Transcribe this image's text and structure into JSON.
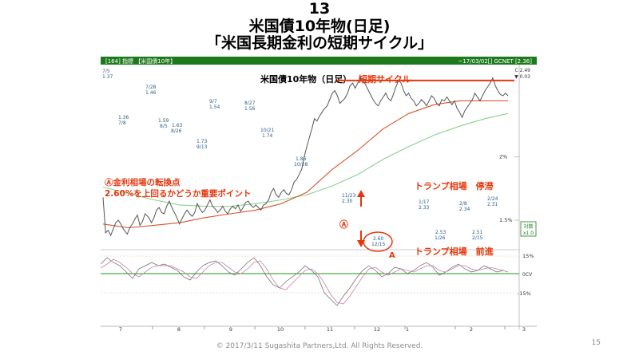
{
  "slide": {
    "number": "13",
    "title_line1": "米国債10年物(日足)",
    "title_line2": "「米国長期金利の短期サイクル」",
    "footer": "© 2017/3/11 Sugashita Partners,Ltd. All Rights Reserved.",
    "page_number": "15"
  },
  "chart_data": {
    "type": "line",
    "header_left": "[164] 指標 【米国債10年】",
    "header_right": "~17/03/02[] GCNET [2.36]",
    "header_legend": [
      "C 2.49",
      "▼ 0.03"
    ],
    "title": "米国債10年物（日足）",
    "title_highlight": "短期サイクル",
    "x_ticks": [
      "7",
      "8",
      "9",
      "10",
      "11",
      "12",
      "1",
      "2",
      "3"
    ],
    "y_ticks": [
      "1.5%",
      "2%"
    ],
    "y_range": [
      1.28,
      2.7
    ],
    "oscillator_ticks": [
      "15%",
      "0CV",
      "-15%"
    ],
    "series": [
      {
        "name": "price",
        "color": "#555555",
        "points": [
          [
            0,
            1.68
          ],
          [
            2,
            1.4
          ],
          [
            4,
            1.42
          ],
          [
            6,
            1.38
          ],
          [
            8,
            1.43
          ],
          [
            10,
            1.48
          ],
          [
            12,
            1.5
          ],
          [
            14,
            1.47
          ],
          [
            16,
            1.43
          ],
          [
            19,
            1.39
          ],
          [
            21,
            1.44
          ],
          [
            23,
            1.47
          ],
          [
            25,
            1.51
          ],
          [
            27,
            1.54
          ],
          [
            29,
            1.46
          ],
          [
            31,
            1.49
          ],
          [
            33,
            1.55
          ],
          [
            36,
            1.52
          ],
          [
            38,
            1.48
          ],
          [
            40,
            1.52
          ],
          [
            42,
            1.58
          ],
          [
            44,
            1.6
          ],
          [
            46,
            1.56
          ],
          [
            48,
            1.55
          ],
          [
            50,
            1.61
          ],
          [
            52,
            1.65
          ],
          [
            54,
            1.6
          ],
          [
            56,
            1.56
          ],
          [
            58,
            1.52
          ],
          [
            60,
            1.47
          ],
          [
            62,
            1.51
          ],
          [
            64,
            1.55
          ],
          [
            66,
            1.58
          ],
          [
            68,
            1.55
          ],
          [
            70,
            1.53
          ],
          [
            72,
            1.56
          ],
          [
            74,
            1.63
          ],
          [
            76,
            1.59
          ],
          [
            78,
            1.56
          ],
          [
            80,
            1.58
          ],
          [
            82,
            1.62
          ],
          [
            84,
            1.66
          ],
          [
            86,
            1.61
          ],
          [
            88,
            1.59
          ],
          [
            90,
            1.56
          ],
          [
            92,
            1.58
          ],
          [
            94,
            1.61
          ],
          [
            96,
            1.57
          ],
          [
            98,
            1.55
          ],
          [
            100,
            1.59
          ],
          [
            102,
            1.61
          ],
          [
            104,
            1.59
          ],
          [
            106,
            1.62
          ],
          [
            108,
            1.57
          ],
          [
            110,
            1.6
          ],
          [
            112,
            1.64
          ],
          [
            114,
            1.65
          ],
          [
            116,
            1.62
          ],
          [
            118,
            1.6
          ],
          [
            120,
            1.62
          ],
          [
            122,
            1.6
          ],
          [
            124,
            1.58
          ],
          [
            126,
            1.62
          ],
          [
            128,
            1.63
          ],
          [
            130,
            1.66
          ],
          [
            132,
            1.72
          ],
          [
            134,
            1.75
          ],
          [
            136,
            1.7
          ],
          [
            138,
            1.68
          ],
          [
            140,
            1.72
          ],
          [
            142,
            1.74
          ],
          [
            144,
            1.71
          ],
          [
            146,
            1.7
          ],
          [
            148,
            1.74
          ],
          [
            150,
            1.8
          ],
          [
            152,
            1.82
          ],
          [
            154,
            1.86
          ],
          [
            156,
            1.9
          ],
          [
            158,
            2.0
          ],
          [
            160,
            2.08
          ],
          [
            162,
            2.15
          ],
          [
            164,
            2.22
          ],
          [
            166,
            2.3
          ],
          [
            168,
            2.28
          ],
          [
            170,
            2.32
          ],
          [
            172,
            2.35
          ],
          [
            174,
            2.38
          ],
          [
            176,
            2.4
          ],
          [
            178,
            2.45
          ],
          [
            180,
            2.5
          ],
          [
            182,
            2.52
          ],
          [
            184,
            2.48
          ],
          [
            186,
            2.42
          ],
          [
            188,
            2.44
          ],
          [
            190,
            2.46
          ],
          [
            192,
            2.5
          ],
          [
            194,
            2.56
          ],
          [
            196,
            2.58
          ],
          [
            198,
            2.54
          ],
          [
            200,
            2.58
          ],
          [
            202,
            2.62
          ],
          [
            204,
            2.6
          ],
          [
            206,
            2.57
          ],
          [
            208,
            2.53
          ],
          [
            210,
            2.49
          ],
          [
            212,
            2.45
          ],
          [
            214,
            2.42
          ],
          [
            216,
            2.4
          ],
          [
            218,
            2.44
          ],
          [
            220,
            2.47
          ],
          [
            222,
            2.5
          ],
          [
            224,
            2.46
          ],
          [
            226,
            2.44
          ],
          [
            228,
            2.49
          ],
          [
            230,
            2.55
          ],
          [
            232,
            2.6
          ],
          [
            234,
            2.58
          ],
          [
            236,
            2.52
          ],
          [
            238,
            2.48
          ],
          [
            240,
            2.5
          ],
          [
            242,
            2.46
          ],
          [
            244,
            2.44
          ],
          [
            246,
            2.4
          ],
          [
            248,
            2.42
          ],
          [
            250,
            2.45
          ],
          [
            252,
            2.43
          ],
          [
            254,
            2.4
          ],
          [
            256,
            2.44
          ],
          [
            258,
            2.48
          ],
          [
            260,
            2.46
          ],
          [
            262,
            2.42
          ],
          [
            264,
            2.4
          ],
          [
            266,
            2.45
          ],
          [
            268,
            2.44
          ],
          [
            270,
            2.47
          ],
          [
            272,
            2.44
          ],
          [
            274,
            2.41
          ],
          [
            276,
            2.44
          ],
          [
            278,
            2.38
          ],
          [
            280,
            2.35
          ],
          [
            282,
            2.31
          ],
          [
            284,
            2.36
          ],
          [
            286,
            2.39
          ],
          [
            288,
            2.42
          ],
          [
            290,
            2.45
          ],
          [
            292,
            2.5
          ],
          [
            294,
            2.47
          ],
          [
            296,
            2.44
          ],
          [
            298,
            2.48
          ],
          [
            300,
            2.52
          ],
          [
            302,
            2.55
          ],
          [
            304,
            2.58
          ],
          [
            306,
            2.62
          ],
          [
            308,
            2.56
          ],
          [
            310,
            2.52
          ],
          [
            312,
            2.49
          ],
          [
            314,
            2.48
          ],
          [
            316,
            2.5
          ],
          [
            318,
            2.48
          ]
        ]
      },
      {
        "name": "ma_short",
        "color": "#d9542c",
        "points": [
          [
            0,
            1.47
          ],
          [
            20,
            1.44
          ],
          [
            40,
            1.46
          ],
          [
            60,
            1.48
          ],
          [
            80,
            1.52
          ],
          [
            100,
            1.55
          ],
          [
            120,
            1.58
          ],
          [
            140,
            1.63
          ],
          [
            160,
            1.72
          ],
          [
            180,
            1.9
          ],
          [
            200,
            2.05
          ],
          [
            220,
            2.22
          ],
          [
            240,
            2.34
          ],
          [
            260,
            2.41
          ],
          [
            280,
            2.44
          ],
          [
            300,
            2.44
          ],
          [
            318,
            2.44
          ]
        ]
      },
      {
        "name": "ma_long",
        "color": "#8fcf8f",
        "points": [
          [
            0,
            1.76
          ],
          [
            20,
            1.71
          ],
          [
            40,
            1.66
          ],
          [
            60,
            1.62
          ],
          [
            80,
            1.61
          ],
          [
            100,
            1.61
          ],
          [
            120,
            1.63
          ],
          [
            140,
            1.66
          ],
          [
            160,
            1.7
          ],
          [
            180,
            1.77
          ],
          [
            200,
            1.86
          ],
          [
            220,
            1.98
          ],
          [
            240,
            2.08
          ],
          [
            260,
            2.17
          ],
          [
            280,
            2.24
          ],
          [
            300,
            2.3
          ],
          [
            318,
            2.34
          ]
        ]
      }
    ],
    "reference_line": {
      "value": 2.6,
      "color": "#e8360c"
    },
    "point_labels": [
      {
        "date": "7/5",
        "value": "1.37"
      },
      {
        "date": "7/8",
        "value": "1.36"
      },
      {
        "date": "7/28",
        "value": "1.46"
      },
      {
        "date": "1.59",
        "value": "8/5"
      },
      {
        "date": "1.63",
        "value": "8/26"
      },
      {
        "date": "9/7",
        "value": "1.54"
      },
      {
        "date": "8/27",
        "value": "1.56"
      },
      {
        "date": "1.73",
        "value": "9/13"
      },
      {
        "date": "10/21",
        "value": "1.74"
      },
      {
        "date": "1.86",
        "value": "10/28"
      },
      {
        "date": "11/23",
        "value": "2.30"
      },
      {
        "date": "2.60",
        "value": "12/15"
      },
      {
        "date": "1/17",
        "value": "2.33"
      },
      {
        "date": "2.53",
        "value": "1/26"
      },
      {
        "date": "2/8",
        "value": "2.34"
      },
      {
        "date": "2.51",
        "value": "2/15"
      },
      {
        "date": "2/24",
        "value": "2.31"
      }
    ],
    "annotations": {
      "circle_a_label": "Ⓐ",
      "a_label": "A",
      "left_line1": "Ⓐ金利相場の転換点",
      "left_line2": "2.60%を上回るかどうか重要ポイント",
      "trump_stall": "トランプ相場　停滞",
      "trump_advance": "トランプ相場　前進",
      "right_tag_top": "対数",
      "right_tag_bottom": "x1.0"
    }
  }
}
